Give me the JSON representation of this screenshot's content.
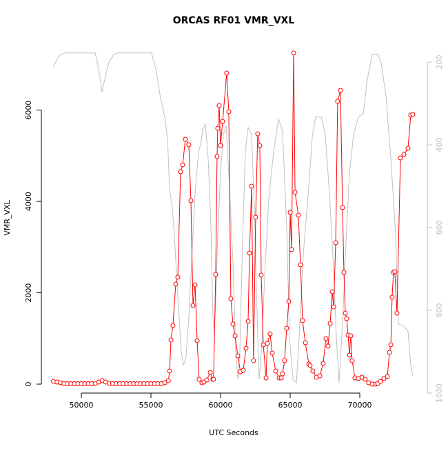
{
  "chart_data": {
    "type": "line",
    "title": "ORCAS RF01 VMR_VXL",
    "x_label": "UTC Seconds",
    "y_label": "VMR_VXL",
    "xlim": [
      47130,
      74850
    ],
    "xticks": [
      50000,
      55000,
      60000,
      65000,
      70000
    ],
    "ylim": [
      -196,
      7505
    ],
    "yticks": [
      0,
      2000,
      4000,
      6000
    ],
    "y2lim": [
      1000,
      150
    ],
    "y2ticks": [
      200,
      400,
      600,
      800,
      1000
    ],
    "series": [
      {
        "color": "#ff0000",
        "markers": true,
        "x": [
          48000,
          48250,
          48500,
          48750,
          49000,
          49250,
          49500,
          49750,
          50000,
          50250,
          50500,
          50750,
          51000,
          51250,
          51500,
          51750,
          52000,
          52250,
          52500,
          52750,
          53000,
          53250,
          53500,
          53750,
          54000,
          54250,
          54500,
          54750,
          55000,
          55250,
          55500,
          55750,
          56000,
          56250,
          56340,
          56440,
          56580,
          56780,
          56930,
          57130,
          57280,
          57470,
          57720,
          57870,
          58020,
          58170,
          58320,
          58460,
          58660,
          58810,
          59010,
          59260,
          59450,
          59500,
          59650,
          59750,
          59800,
          59900,
          60000,
          60150,
          60440,
          60590,
          60740,
          60890,
          61040,
          61240,
          61430,
          61630,
          61830,
          61980,
          62080,
          62230,
          62370,
          62520,
          62670,
          62820,
          62920,
          63070,
          63270,
          63360,
          63560,
          63710,
          63960,
          64210,
          64360,
          64450,
          64600,
          64750,
          64900,
          65000,
          65100,
          65250,
          65350,
          65590,
          65740,
          65890,
          66090,
          66340,
          66430,
          66630,
          66880,
          67130,
          67370,
          67570,
          67720,
          67870,
          68020,
          68120,
          68270,
          68410,
          68610,
          68760,
          68860,
          68960,
          69060,
          69160,
          69260,
          69350,
          69450,
          69650,
          69900,
          70150,
          70390,
          70640,
          70890,
          71140,
          71290,
          71480,
          71730,
          71980,
          72130,
          72230,
          72320,
          72420,
          72520,
          72670,
          72920,
          73170,
          73460,
          73660,
          73810
        ],
        "values": [
          60,
          45,
          30,
          15,
          10,
          10,
          10,
          10,
          10,
          10,
          10,
          10,
          15,
          45,
          75,
          45,
          15,
          10,
          10,
          10,
          10,
          10,
          10,
          10,
          10,
          10,
          10,
          10,
          10,
          10,
          10,
          10,
          30,
          75,
          287,
          966,
          1284,
          2190,
          2341,
          4651,
          4802,
          5361,
          5240,
          4017,
          1722,
          2174,
          951,
          106,
          30,
          45,
          91,
          257,
          106,
          106,
          2401,
          4983,
          5602,
          6100,
          5225,
          5753,
          6810,
          5965,
          1872,
          1314,
          1057,
          619,
          272,
          302,
          785,
          1374,
          2869,
          4334,
          513,
          3654,
          5481,
          5225,
          2386,
          861,
          136,
          891,
          1102,
          680,
          287,
          136,
          136,
          227,
          513,
          1223,
          1812,
          3760,
          2945,
          7250,
          4200,
          3700,
          2612,
          1389,
          906,
          438,
          408,
          287,
          151,
          181,
          453,
          997,
          831,
          1329,
          2023,
          1691,
          3096,
          6191,
          6433,
          3866,
          2446,
          1555,
          1435,
          1072,
          634,
          1057,
          513,
          136,
          121,
          151,
          106,
          30,
          0,
          0,
          15,
          60,
          121,
          166,
          695,
          861,
          1903,
          2446,
          2461,
          1555,
          4953,
          5028,
          5164,
          5889,
          5904
        ]
      },
      {
        "color": "#c0c0c0",
        "axis": "y2",
        "markers": false,
        "x": [
          48000,
          48250,
          48500,
          48860,
          51000,
          51140,
          51340,
          51490,
          51680,
          51980,
          52330,
          52570,
          55050,
          55150,
          55400,
          55640,
          55990,
          56190,
          56340,
          56530,
          56680,
          56930,
          57180,
          57330,
          57520,
          57720,
          57920,
          58170,
          58420,
          58610,
          58710,
          58910,
          59110,
          59310,
          59450,
          59550,
          59650,
          59800,
          60000,
          60200,
          60400,
          60640,
          60890,
          61090,
          61240,
          61390,
          61580,
          61780,
          61980,
          62230,
          62420,
          62620,
          62770,
          62970,
          63170,
          63460,
          63810,
          64160,
          64450,
          64750,
          64950,
          65200,
          65450,
          65640,
          65940,
          66340,
          66580,
          66830,
          67230,
          67520,
          67820,
          68120,
          68320,
          68510,
          68760,
          69010,
          69260,
          69550,
          69900,
          70250,
          70540,
          70890,
          71290,
          71530,
          71880,
          72230,
          72570,
          72770,
          73120,
          73460,
          73660,
          73810
        ],
        "values": [
          212,
          193,
          182,
          178,
          178,
          200,
          237,
          272,
          242,
          200,
          182,
          178,
          178,
          192,
          223,
          278,
          333,
          383,
          508,
          550,
          617,
          767,
          900,
          933,
          913,
          817,
          683,
          517,
          417,
          392,
          363,
          350,
          433,
          600,
          817,
          850,
          783,
          617,
          467,
          375,
          355,
          500,
          683,
          900,
          967,
          900,
          633,
          417,
          358,
          375,
          550,
          800,
          967,
          883,
          717,
          533,
          417,
          337,
          367,
          600,
          867,
          967,
          975,
          867,
          667,
          500,
          383,
          333,
          333,
          375,
          517,
          700,
          867,
          975,
          833,
          633,
          467,
          375,
          333,
          325,
          242,
          183,
          180,
          200,
          283,
          433,
          617,
          833,
          837,
          850,
          933,
          958
        ]
      }
    ]
  }
}
